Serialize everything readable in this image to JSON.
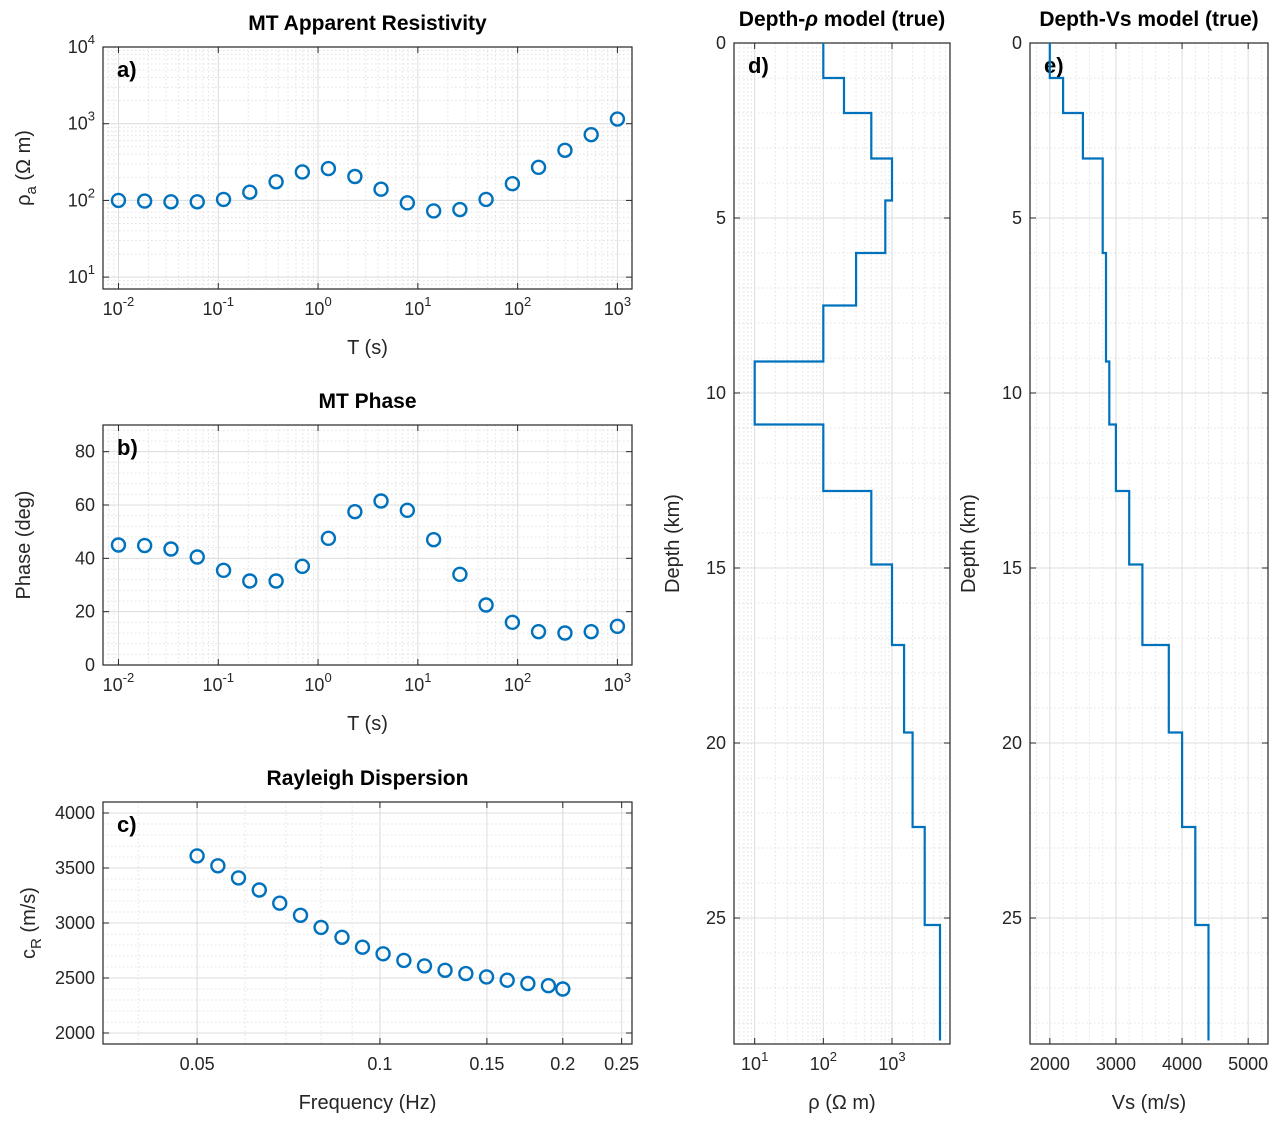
{
  "chart_data": [
    {
      "id": "a",
      "panel_label": "a)",
      "type": "scatter",
      "title": "MT Apparent Resistivity",
      "xlabel": "T (s)",
      "ylabel_main": "ρ",
      "ylabel_sub": "a",
      "ylabel_unit": " (Ω m)",
      "xscale": "log",
      "yscale": "log",
      "xlim": [
        0.007,
        1400
      ],
      "ylim": [
        7,
        10000
      ],
      "grid": true,
      "marker": "open-circle",
      "color": "#0072BD",
      "x_ticks": [
        {
          "base": "10",
          "exp": "-2"
        },
        {
          "base": "10",
          "exp": "-1"
        },
        {
          "base": "10",
          "exp": "0"
        },
        {
          "base": "10",
          "exp": "1"
        },
        {
          "base": "10",
          "exp": "2"
        },
        {
          "base": "10",
          "exp": "3"
        }
      ],
      "y_ticks": [
        {
          "base": "10",
          "exp": "1"
        },
        {
          "base": "10",
          "exp": "2"
        },
        {
          "base": "10",
          "exp": "3"
        },
        {
          "base": "10",
          "exp": "4"
        }
      ],
      "x": [
        0.01,
        0.0183,
        0.0336,
        0.0616,
        0.113,
        0.207,
        0.38,
        0.696,
        1.27,
        2.34,
        4.28,
        7.85,
        14.4,
        26.4,
        48.3,
        88.6,
        162,
        298,
        546,
        1000
      ],
      "y": [
        100,
        98,
        96,
        96,
        103,
        128,
        175,
        235,
        260,
        205,
        140,
        93,
        73,
        76,
        103,
        165,
        270,
        450,
        720,
        1150
      ]
    },
    {
      "id": "b",
      "panel_label": "b)",
      "type": "scatter",
      "title": "MT Phase",
      "xlabel": "T (s)",
      "ylabel": "Phase (deg)",
      "xscale": "log",
      "yscale": "linear",
      "xlim": [
        0.007,
        1400
      ],
      "ylim": [
        0,
        90
      ],
      "grid": true,
      "marker": "open-circle",
      "color": "#0072BD",
      "x_ticks": [
        {
          "base": "10",
          "exp": "-2"
        },
        {
          "base": "10",
          "exp": "-1"
        },
        {
          "base": "10",
          "exp": "0"
        },
        {
          "base": "10",
          "exp": "1"
        },
        {
          "base": "10",
          "exp": "2"
        },
        {
          "base": "10",
          "exp": "3"
        }
      ],
      "y_ticks": [
        "0",
        "20",
        "40",
        "60",
        "80"
      ],
      "x": [
        0.01,
        0.0183,
        0.0336,
        0.0616,
        0.113,
        0.207,
        0.38,
        0.696,
        1.27,
        2.34,
        4.28,
        7.85,
        14.4,
        26.4,
        48.3,
        88.6,
        162,
        298,
        546,
        1000
      ],
      "y": [
        45,
        44.8,
        43.5,
        40.5,
        35.5,
        31.5,
        31.5,
        37,
        47.5,
        57.5,
        61.5,
        58,
        47,
        34,
        22.5,
        16,
        12.5,
        12,
        12.5,
        14.5
      ]
    },
    {
      "id": "c",
      "panel_label": "c)",
      "type": "scatter",
      "title": "Rayleigh Dispersion",
      "xlabel": "Frequency (Hz)",
      "ylabel_main": "c",
      "ylabel_sub": "R",
      "ylabel_unit": " (m/s)",
      "xscale": "log",
      "yscale": "linear",
      "xlim": [
        0.035,
        0.26
      ],
      "ylim": [
        1900,
        4100
      ],
      "grid": true,
      "marker": "open-circle",
      "color": "#0072BD",
      "x_ticks": [
        "0.05",
        "0.1",
        "0.15",
        "0.2",
        "0.25"
      ],
      "y_ticks": [
        "2000",
        "2500",
        "3000",
        "3500",
        "4000"
      ],
      "x": [
        0.05,
        0.0541,
        0.0585,
        0.0633,
        0.0684,
        0.074,
        0.08,
        0.0866,
        0.0936,
        0.1012,
        0.1095,
        0.1184,
        0.128,
        0.1385,
        0.1498,
        0.162,
        0.1752,
        0.1894,
        0.2
      ],
      "y": [
        3610,
        3520,
        3410,
        3300,
        3180,
        3070,
        2960,
        2870,
        2780,
        2720,
        2660,
        2610,
        2570,
        2540,
        2510,
        2480,
        2450,
        2430,
        2400
      ]
    },
    {
      "id": "d",
      "panel_label": "d)",
      "type": "line",
      "title_pre": "Depth-",
      "title_symbol": "ρ",
      "title_post": " model (true)",
      "xlabel": "ρ (Ω m)",
      "ylabel": "Depth (km)",
      "xscale": "log",
      "yscale": "linear",
      "y_reversed": true,
      "xlim": [
        5,
        7000
      ],
      "ylim": [
        0,
        28.6
      ],
      "grid": true,
      "color": "#0072BD",
      "x_ticks": [
        {
          "base": "10",
          "exp": "1"
        },
        {
          "base": "10",
          "exp": "2"
        },
        {
          "base": "10",
          "exp": "3"
        }
      ],
      "y_ticks": [
        "0",
        "5",
        "10",
        "15",
        "20",
        "25"
      ],
      "layers": [
        {
          "rho": 100,
          "top": 0,
          "bottom": 1.0
        },
        {
          "rho": 200,
          "top": 1.0,
          "bottom": 2.0
        },
        {
          "rho": 500,
          "top": 2.0,
          "bottom": 3.3
        },
        {
          "rho": 1000,
          "top": 3.3,
          "bottom": 4.5
        },
        {
          "rho": 800,
          "top": 4.5,
          "bottom": 6.0
        },
        {
          "rho": 300,
          "top": 6.0,
          "bottom": 7.5
        },
        {
          "rho": 100,
          "top": 7.5,
          "bottom": 9.1
        },
        {
          "rho": 10,
          "top": 9.1,
          "bottom": 10.9
        },
        {
          "rho": 100,
          "top": 10.9,
          "bottom": 12.8
        },
        {
          "rho": 500,
          "top": 12.8,
          "bottom": 14.9
        },
        {
          "rho": 1000,
          "top": 14.9,
          "bottom": 17.2
        },
        {
          "rho": 1500,
          "top": 17.2,
          "bottom": 19.7
        },
        {
          "rho": 2000,
          "top": 19.7,
          "bottom": 22.4
        },
        {
          "rho": 3000,
          "top": 22.4,
          "bottom": 25.2
        },
        {
          "rho": 5000,
          "top": 25.2,
          "bottom": 28.5
        }
      ]
    },
    {
      "id": "e",
      "panel_label": "e)",
      "type": "line",
      "title": "Depth-Vs model (true)",
      "xlabel": "Vs (m/s)",
      "ylabel": "Depth (km)",
      "xscale": "linear",
      "yscale": "linear",
      "y_reversed": true,
      "xlim": [
        1700,
        5300
      ],
      "ylim": [
        0,
        28.6
      ],
      "grid": true,
      "color": "#0072BD",
      "x_ticks": [
        "2000",
        "3000",
        "4000",
        "5000"
      ],
      "y_ticks": [
        "0",
        "5",
        "10",
        "15",
        "20",
        "25"
      ],
      "layers": [
        {
          "vs": 2000,
          "top": 0,
          "bottom": 1.0
        },
        {
          "vs": 2200,
          "top": 1.0,
          "bottom": 2.0
        },
        {
          "vs": 2500,
          "top": 2.0,
          "bottom": 3.3
        },
        {
          "vs": 2800,
          "top": 3.3,
          "bottom": 6.0
        },
        {
          "vs": 2850,
          "top": 6.0,
          "bottom": 9.1
        },
        {
          "vs": 2900,
          "top": 9.1,
          "bottom": 10.9
        },
        {
          "vs": 3000,
          "top": 10.9,
          "bottom": 12.8
        },
        {
          "vs": 3200,
          "top": 12.8,
          "bottom": 14.9
        },
        {
          "vs": 3400,
          "top": 14.9,
          "bottom": 17.2
        },
        {
          "vs": 3800,
          "top": 17.2,
          "bottom": 19.7
        },
        {
          "vs": 4000,
          "top": 19.7,
          "bottom": 22.4
        },
        {
          "vs": 4200,
          "top": 22.4,
          "bottom": 25.2
        },
        {
          "vs": 4400,
          "top": 25.2,
          "bottom": 28.5
        }
      ]
    }
  ]
}
